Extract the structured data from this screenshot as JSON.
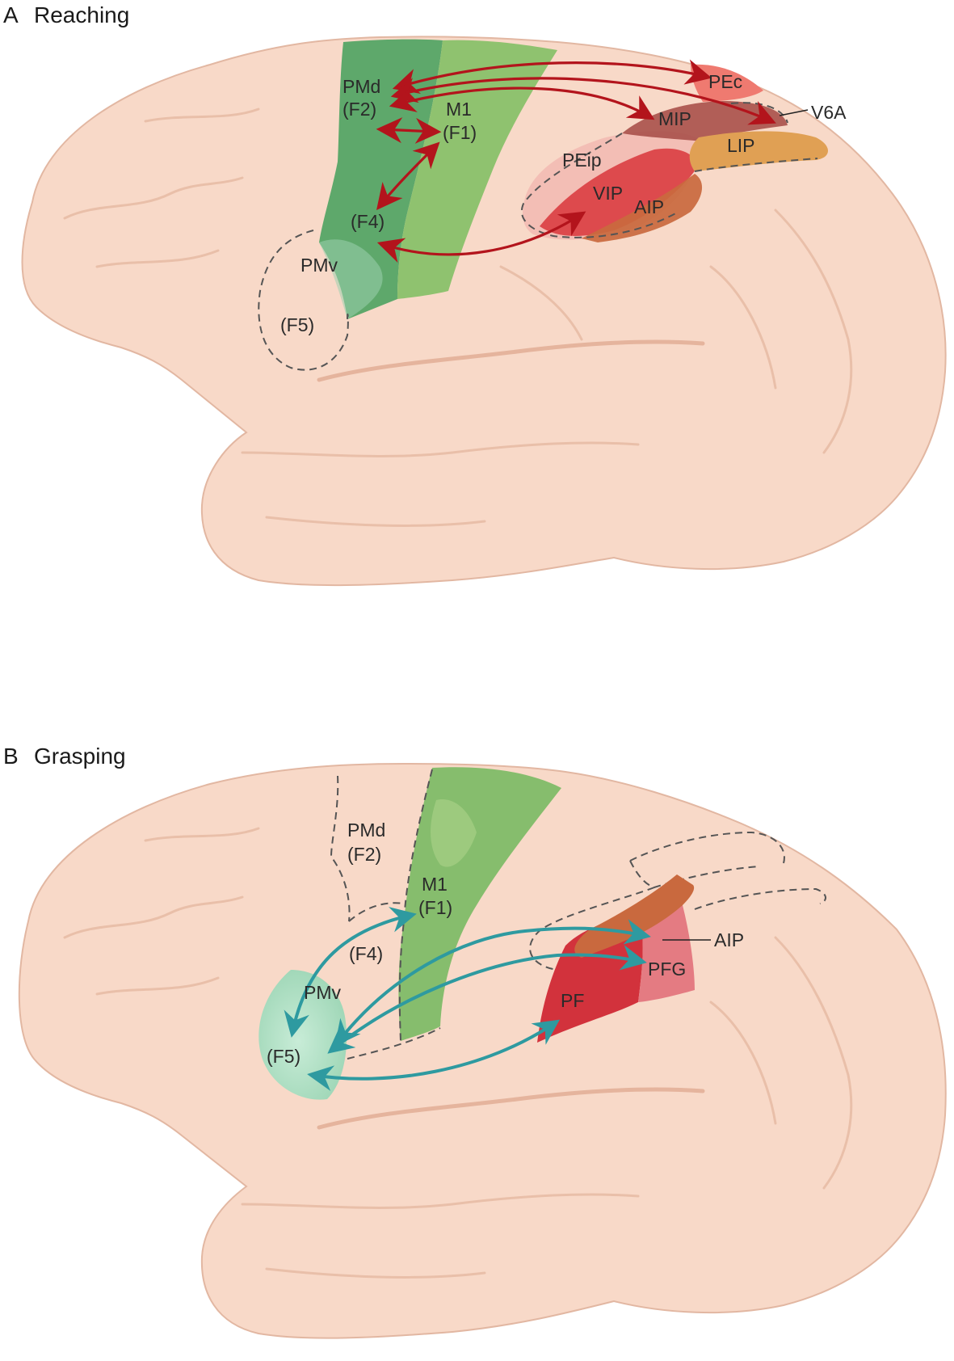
{
  "panel_a": {
    "letter": "A",
    "title": "Reaching",
    "labels": {
      "pmd": "PMd",
      "f2": "(F2)",
      "m1": "M1",
      "f1": "(F1)",
      "f4": "(F4)",
      "pmv": "PMv",
      "f5": "(F5)",
      "pec": "PEc",
      "v6a": "V6A",
      "mip": "MIP",
      "lip": "LIP",
      "peip": "PEip",
      "vip": "VIP",
      "aip": "AIP"
    }
  },
  "panel_b": {
    "letter": "B",
    "title": "Grasping",
    "labels": {
      "pmd": "PMd",
      "f2": "(F2)",
      "m1": "M1",
      "f1": "(F1)",
      "f4": "(F4)",
      "pmv": "PMv",
      "f5": "(F5)",
      "aip": "AIP",
      "pfg": "PFG",
      "pf": "PF"
    }
  },
  "colors": {
    "brain": "#f8d9c8",
    "premotor_green": "#5ea86b",
    "motor_green": "#8fc26f",
    "reach_arrow": "#b3141c",
    "grasp_arrow": "#2e9aa0",
    "pf_red": "#d2323c",
    "pfg_pink": "#e47b82",
    "aip_brown": "#c9693e"
  }
}
